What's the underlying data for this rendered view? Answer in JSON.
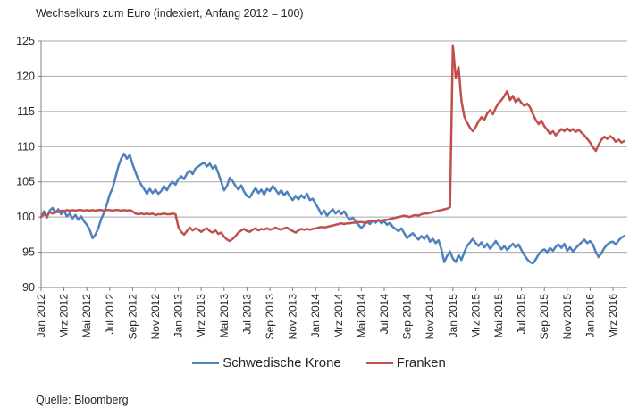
{
  "chart_data": {
    "type": "line",
    "title": "Wechselkurs zum Euro (indexiert, Anfang 2012 = 100)",
    "source": "Quelle: Bloomberg",
    "ylim": [
      90,
      125
    ],
    "ytick_step": 5,
    "grid": "horizontal",
    "legend_position": "bottom",
    "x_tick_interval_months": 2,
    "x_total_months": 51.25,
    "sample_step_months": 0.25,
    "x_tick_labels": [
      "Jan 2012",
      "Mrz 2012",
      "Mai 2012",
      "Jul 2012",
      "Sep 2012",
      "Nov 2012",
      "Jan 2013",
      "Mrz 2013",
      "Mai 2013",
      "Jul 2013",
      "Sep 2013",
      "Nov 2013",
      "Jan 2014",
      "Mrz 2014",
      "Mai 2014",
      "Jul 2014",
      "Sep 2014",
      "Nov 2014",
      "Jan 2015",
      "Mrz 2015",
      "Mai 2015",
      "Jul 2015",
      "Sep 2015",
      "Nov 2015",
      "Jan 2016",
      "Mrz 2016"
    ],
    "colors": {
      "grid": "#A6A6A6",
      "axis": "#808080",
      "text": "#262626"
    },
    "series": [
      {
        "name": "Schwedische Krone",
        "color": "#4F81BD",
        "values": [
          100.0,
          100.8,
          99.9,
          100.9,
          101.3,
          100.6,
          101.1,
          100.4,
          100.9,
          100.1,
          100.5,
          99.8,
          100.3,
          99.6,
          100.1,
          99.4,
          98.9,
          98.2,
          97.0,
          97.5,
          98.4,
          99.7,
          100.6,
          101.8,
          103.2,
          104.1,
          105.6,
          107.2,
          108.3,
          109.0,
          108.3,
          108.8,
          107.5,
          106.4,
          105.3,
          104.6,
          104.0,
          103.3,
          104.0,
          103.4,
          103.9,
          103.3,
          103.7,
          104.4,
          103.8,
          104.6,
          105.0,
          104.6,
          105.4,
          105.8,
          105.4,
          106.2,
          106.6,
          106.1,
          106.9,
          107.2,
          107.5,
          107.7,
          107.2,
          107.6,
          106.9,
          107.3,
          106.2,
          105.0,
          103.8,
          104.4,
          105.6,
          105.1,
          104.4,
          103.9,
          104.5,
          103.6,
          103.0,
          102.8,
          103.5,
          104.1,
          103.4,
          103.9,
          103.2,
          104.0,
          103.7,
          104.4,
          103.9,
          103.3,
          103.8,
          103.1,
          103.6,
          102.9,
          102.4,
          103.0,
          102.5,
          103.1,
          102.7,
          103.3,
          102.4,
          102.6,
          101.9,
          101.2,
          100.4,
          100.9,
          100.2,
          100.7,
          101.1,
          100.5,
          100.9,
          100.4,
          100.8,
          100.1,
          99.6,
          99.9,
          99.4,
          98.9,
          98.4,
          98.9,
          99.3,
          99.0,
          99.5,
          99.2,
          99.6,
          99.1,
          99.4,
          98.9,
          99.2,
          98.6,
          98.3,
          98.0,
          98.4,
          97.7,
          97.0,
          97.4,
          97.7,
          97.2,
          96.8,
          97.3,
          96.9,
          97.4,
          96.5,
          96.9,
          96.3,
          96.7,
          95.4,
          93.6,
          94.5,
          95.1,
          94.1,
          93.6,
          94.6,
          93.9,
          95.0,
          95.9,
          96.4,
          96.9,
          96.3,
          95.9,
          96.4,
          95.7,
          96.2,
          95.5,
          96.0,
          96.6,
          96.0,
          95.4,
          95.9,
          95.3,
          95.8,
          96.2,
          95.7,
          96.1,
          95.3,
          94.6,
          94.0,
          93.6,
          93.4,
          94.0,
          94.7,
          95.2,
          95.4,
          95.0,
          95.6,
          95.2,
          95.8,
          96.1,
          95.6,
          96.2,
          95.2,
          95.7,
          95.1,
          95.6,
          96.0,
          96.4,
          96.8,
          96.3,
          96.6,
          96.1,
          95.0,
          94.3,
          94.9,
          95.6,
          96.1,
          96.4,
          96.5,
          96.1,
          96.7,
          97.1,
          97.3
        ]
      },
      {
        "name": "Franken",
        "color": "#C0504D",
        "values": [
          100.0,
          100.4,
          100.2,
          100.7,
          100.5,
          100.8,
          100.7,
          100.9,
          100.8,
          101.0,
          100.9,
          101.0,
          100.9,
          101.0,
          101.0,
          100.9,
          101.0,
          100.9,
          101.0,
          100.9,
          101.0,
          101.0,
          100.9,
          101.0,
          101.0,
          100.9,
          101.0,
          101.0,
          100.9,
          101.0,
          100.9,
          101.0,
          100.8,
          100.5,
          100.4,
          100.5,
          100.4,
          100.5,
          100.4,
          100.5,
          100.3,
          100.4,
          100.4,
          100.5,
          100.4,
          100.4,
          100.5,
          100.4,
          98.6,
          97.9,
          97.5,
          98.0,
          98.5,
          98.1,
          98.4,
          98.2,
          97.9,
          98.2,
          98.4,
          98.0,
          97.8,
          98.1,
          97.6,
          97.8,
          97.2,
          96.8,
          96.6,
          96.9,
          97.3,
          97.8,
          98.1,
          98.3,
          98.0,
          97.9,
          98.2,
          98.4,
          98.1,
          98.3,
          98.2,
          98.4,
          98.2,
          98.3,
          98.5,
          98.3,
          98.2,
          98.4,
          98.5,
          98.2,
          98.0,
          97.8,
          98.1,
          98.3,
          98.2,
          98.3,
          98.2,
          98.3,
          98.4,
          98.5,
          98.6,
          98.5,
          98.6,
          98.7,
          98.8,
          98.9,
          99.0,
          99.1,
          99.0,
          99.1,
          99.1,
          99.2,
          99.2,
          99.3,
          99.3,
          99.2,
          99.3,
          99.4,
          99.5,
          99.4,
          99.5,
          99.5,
          99.6,
          99.6,
          99.7,
          99.8,
          99.9,
          100.0,
          100.1,
          100.2,
          100.1,
          100.0,
          100.2,
          100.3,
          100.2,
          100.4,
          100.5,
          100.5,
          100.6,
          100.7,
          100.8,
          100.9,
          101.0,
          101.1,
          101.2,
          101.4,
          124.4,
          119.8,
          121.3,
          116.5,
          114.3,
          113.4,
          112.7,
          112.2,
          112.8,
          113.6,
          114.2,
          113.8,
          114.7,
          115.2,
          114.6,
          115.5,
          116.2,
          116.6,
          117.2,
          117.9,
          116.6,
          117.2,
          116.3,
          116.8,
          116.2,
          115.8,
          116.1,
          115.6,
          114.6,
          113.8,
          113.2,
          113.7,
          112.9,
          112.4,
          111.8,
          112.2,
          111.6,
          112.1,
          112.5,
          112.2,
          112.6,
          112.2,
          112.5,
          112.1,
          112.4,
          112.0,
          111.6,
          111.1,
          110.6,
          109.9,
          109.4,
          110.3,
          111.0,
          111.4,
          111.1,
          111.5,
          111.2,
          110.7,
          111.0,
          110.6,
          110.8
        ]
      }
    ]
  }
}
